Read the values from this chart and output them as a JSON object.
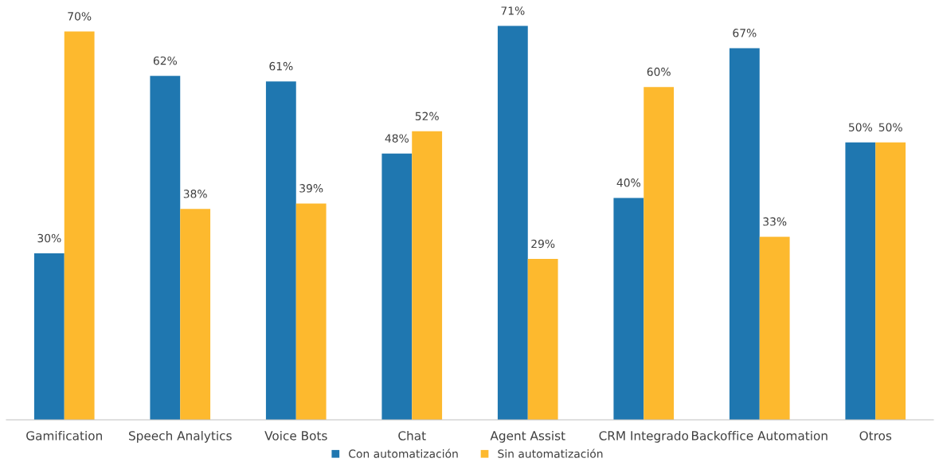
{
  "chart_data": {
    "type": "bar",
    "categories": [
      "Gamification",
      "Speech Analytics",
      "Voice Bots",
      "Chat",
      "Agent Assist",
      "CRM Integrado",
      "Backoffice Automation",
      "Otros"
    ],
    "series": [
      {
        "name": "Con automatización",
        "color": "#1f77b0",
        "values": [
          30,
          62,
          61,
          48,
          71,
          40,
          67,
          50
        ],
        "value_labels": [
          "30%",
          "62%",
          "61%",
          "48%",
          "71%",
          "40%",
          "67%",
          "50%"
        ]
      },
      {
        "name": "Sin automatización",
        "color": "#fdb92e",
        "values": [
          70,
          38,
          39,
          52,
          29,
          60,
          33,
          50
        ],
        "value_labels": [
          "70%",
          "38%",
          "39%",
          "52%",
          "29%",
          "60%",
          "33%",
          "50%"
        ]
      }
    ],
    "legend": "bottom",
    "grid": false
  }
}
